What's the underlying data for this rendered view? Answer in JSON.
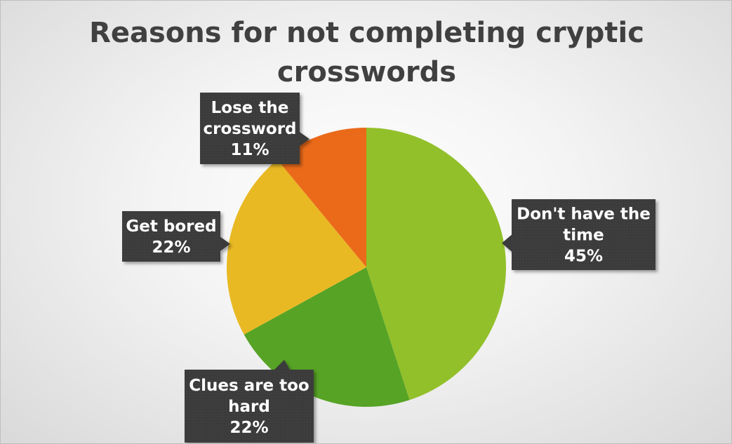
{
  "chart_data": {
    "type": "pie",
    "title_lines": [
      "Reasons for not completing cryptic",
      "crosswords"
    ],
    "slices": [
      {
        "label_lines": [
          "Don't have the",
          "time"
        ],
        "value_text": "45%",
        "value": 45,
        "color": "#92c02a"
      },
      {
        "label_lines": [
          "Clues are too",
          "hard"
        ],
        "value_text": "22%",
        "value": 22,
        "color": "#56a325"
      },
      {
        "label_lines": [
          "Get bored"
        ],
        "value_text": "22%",
        "value": 22,
        "color": "#e8b923"
      },
      {
        "label_lines": [
          "Lose the",
          "crossword"
        ],
        "value_text": "11%",
        "value": 11,
        "color": "#ea6a1a"
      }
    ],
    "label_style": {
      "background": "#3b3b3b",
      "text_color": "#ffffff"
    },
    "legend": "none"
  }
}
